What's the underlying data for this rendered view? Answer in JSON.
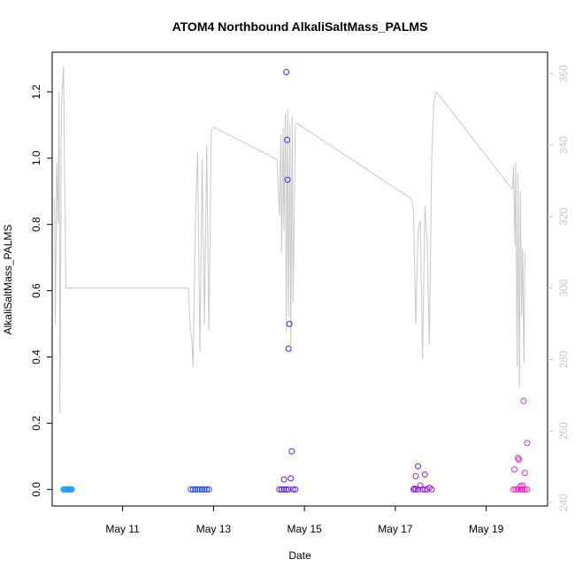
{
  "chart_data": {
    "type": "scatter",
    "title": "ATOM4 Northbound AlkaliSaltMass_PALMS",
    "xlabel": "Date",
    "ylabel": "AlkaliSaltMass_PALMS",
    "x_ticks": [
      "May 11",
      "May 13",
      "May 15",
      "May 17",
      "May 19"
    ],
    "x_tick_values": [
      11,
      13,
      15,
      17,
      19
    ],
    "xlim": [
      9.45,
      20.35
    ],
    "ylim": [
      -0.05,
      1.32
    ],
    "y_ticks": [
      0.0,
      0.2,
      0.4,
      0.6,
      0.8,
      1.0,
      1.2
    ],
    "y_tick_labels": [
      "0.0",
      "0.2",
      "0.4",
      "0.6",
      "0.8",
      "1.0",
      "1.2"
    ],
    "y2_ticks": [
      240,
      260,
      280,
      300,
      320,
      340,
      360
    ],
    "y2_tick_labels": [
      "240",
      "260",
      "280",
      "300",
      "320",
      "340",
      "360"
    ],
    "y2lim": [
      239,
      366
    ],
    "grid": false,
    "colors": {
      "points_early": "#1ea0ff",
      "points_late": "#ff22cc",
      "line": "#c8c8c8",
      "right_axis": "#c8c8c8"
    },
    "series": [
      {
        "kind": "points",
        "x": [
          9.7,
          9.72,
          9.74,
          9.76,
          9.78,
          9.8,
          9.82,
          9.84,
          9.86,
          9.88,
          12.5,
          12.55,
          12.6,
          12.65,
          12.7,
          12.75,
          12.8,
          12.85,
          12.9,
          14.45,
          14.5,
          14.55,
          14.6,
          14.62,
          14.63,
          14.65,
          14.67,
          14.7,
          14.72,
          14.75,
          14.8,
          14.55,
          14.6,
          14.65,
          17.4,
          17.45,
          17.5,
          17.55,
          17.6,
          17.65,
          17.7,
          17.75,
          17.8,
          17.45,
          17.5,
          17.65,
          17.42,
          19.6,
          19.65,
          19.7,
          19.72,
          19.75,
          19.78,
          19.8,
          19.82,
          19.85,
          19.9,
          19.62,
          19.7,
          19.8,
          19.85,
          19.9,
          19.75
        ],
        "y": [
          0.0,
          0.0,
          0.0,
          0.0,
          0.0,
          0.0,
          0.0,
          0.0,
          0.0,
          0.0,
          0.0,
          0.0,
          0.0,
          0.0,
          0.0,
          0.0,
          0.0,
          0.0,
          0.0,
          0.0,
          0.0,
          0.03,
          1.26,
          1.055,
          0.935,
          0.425,
          0.5,
          0.033,
          0.115,
          0.0,
          0.0,
          0.0,
          0.0,
          0.0,
          0.0,
          0.0,
          0.07,
          0.012,
          0.0,
          0.045,
          0.0,
          0.005,
          0.0,
          0.04,
          0.0,
          0.0,
          0.003,
          0.0,
          0.0,
          0.095,
          0.09,
          0.01,
          0.0,
          0.0,
          0.267,
          0.05,
          0.14,
          0.06,
          0.0,
          0.012,
          0.0,
          0.0,
          0.0
        ]
      },
      {
        "kind": "line",
        "axis": "right",
        "x": [
          9.5,
          9.52,
          9.55,
          9.58,
          9.6,
          9.62,
          9.65,
          9.7,
          9.75,
          9.8,
          12.45,
          12.48,
          12.52,
          12.55,
          12.6,
          12.65,
          12.7,
          12.75,
          12.8,
          12.85,
          12.9,
          12.95,
          13.0,
          14.4,
          14.45,
          14.48,
          14.5,
          14.53,
          14.55,
          14.58,
          14.6,
          14.63,
          14.65,
          14.68,
          14.7,
          14.73,
          14.75,
          14.8,
          14.85,
          17.35,
          17.4,
          17.45,
          17.5,
          17.55,
          17.6,
          17.65,
          17.7,
          17.75,
          17.8,
          17.85,
          17.9,
          19.55,
          19.58,
          19.6,
          19.63,
          19.65,
          19.68,
          19.7,
          19.73,
          19.75,
          19.78,
          19.8,
          19.83,
          19.85
        ],
        "y": [
          325,
          290,
          335,
          318,
          355,
          265,
          350,
          362,
          300,
          300,
          300,
          290,
          286,
          278,
          318,
          338,
          282,
          336,
          290,
          340,
          288,
          344,
          345,
          336,
          320,
          343,
          310,
          345,
          316,
          349,
          288,
          350,
          292,
          346,
          284,
          348,
          296,
          346,
          346,
          325,
          322,
          290,
          316,
          319,
          280,
          323,
          313,
          284,
          337,
          352,
          355,
          328,
          328,
          334,
          312,
          335,
          278,
          332,
          272,
          327,
          292,
          311,
          279,
          310
        ]
      }
    ]
  }
}
